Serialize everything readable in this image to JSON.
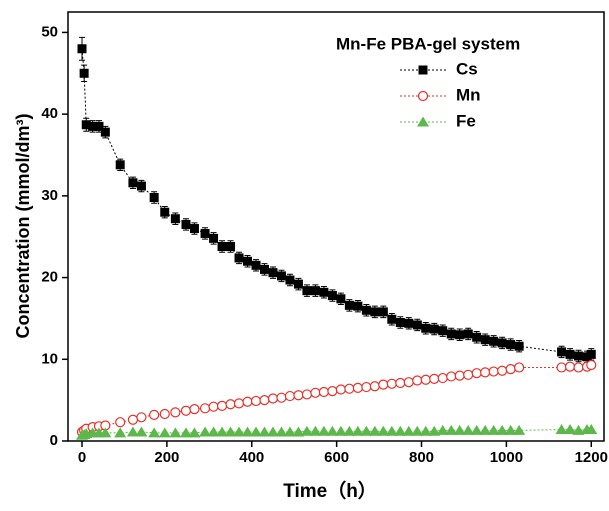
{
  "chart_data": {
    "type": "scatter",
    "xlabel": "Time（h）",
    "ylabel": "Concentration (mmol/dm³)",
    "legend_title": "Mn-Fe PBA-gel system",
    "legend_position": "upper right",
    "xlim": [
      -33,
      1230
    ],
    "xticks": [
      0,
      200,
      400,
      600,
      800,
      1000,
      1200
    ],
    "ylim": [
      0,
      52.5
    ],
    "yticks": [
      0,
      10,
      20,
      30,
      40,
      50
    ],
    "x": [
      0,
      5,
      10,
      25,
      40,
      55,
      90,
      120,
      140,
      170,
      195,
      220,
      245,
      265,
      290,
      310,
      330,
      350,
      370,
      390,
      410,
      430,
      450,
      470,
      490,
      510,
      530,
      550,
      570,
      590,
      610,
      630,
      650,
      670,
      690,
      710,
      730,
      750,
      770,
      790,
      810,
      830,
      850,
      870,
      890,
      910,
      930,
      950,
      970,
      990,
      1010,
      1030,
      1130,
      1150,
      1170,
      1190,
      1200
    ],
    "series": [
      {
        "name": "Cs",
        "color": "#000000",
        "marker": "square",
        "values": [
          48,
          45,
          38.7,
          38.5,
          38.5,
          37.8,
          33.8,
          31.6,
          31.2,
          29.8,
          28,
          27.2,
          26.5,
          26,
          25.4,
          24.8,
          23.8,
          23.8,
          22.4,
          22,
          21.5,
          21,
          20.6,
          20.2,
          19.7,
          19.2,
          18.4,
          18.4,
          18.2,
          17.8,
          17.4,
          16.6,
          16.5,
          16,
          15.8,
          15.8,
          14.9,
          14.5,
          14.4,
          14.2,
          13.8,
          13.7,
          13.5,
          13.1,
          13.0,
          13.1,
          12.7,
          12.4,
          12.2,
          12.0,
          11.8,
          11.6,
          10.9,
          10.6,
          10.4,
          10.3,
          10.6
        ],
        "errors": [
          1.4,
          1.0,
          0.8,
          0.7,
          0.7,
          0.7,
          0.7,
          0.7,
          0.7,
          0.7,
          0.7,
          0.7,
          0.7,
          0.7,
          0.7,
          0.7,
          0.7,
          0.7,
          0.7,
          0.7,
          0.7,
          0.7,
          0.7,
          0.7,
          0.7,
          0.7,
          0.7,
          0.7,
          0.7,
          0.7,
          0.7,
          0.7,
          0.7,
          0.7,
          0.7,
          0.7,
          0.7,
          0.7,
          0.7,
          0.7,
          0.7,
          0.7,
          0.7,
          0.7,
          0.7,
          0.7,
          0.7,
          0.7,
          0.7,
          0.7,
          0.7,
          0.7,
          0.7,
          0.7,
          0.7,
          0.7,
          0.7
        ]
      },
      {
        "name": "Mn",
        "color": "#e8302a",
        "marker": "circle",
        "values": [
          1.1,
          1.3,
          1.5,
          1.7,
          1.8,
          1.9,
          2.3,
          2.6,
          2.9,
          3.2,
          3.3,
          3.5,
          3.7,
          3.9,
          4.0,
          4.2,
          4.3,
          4.5,
          4.6,
          4.8,
          4.9,
          5.0,
          5.2,
          5.3,
          5.5,
          5.6,
          5.7,
          5.9,
          6.0,
          6.1,
          6.3,
          6.4,
          6.5,
          6.6,
          6.7,
          6.9,
          7.0,
          7.1,
          7.2,
          7.4,
          7.5,
          7.6,
          7.7,
          7.9,
          8.0,
          8.1,
          8.3,
          8.4,
          8.5,
          8.6,
          8.8,
          9.0,
          9.0,
          9.1,
          9.0,
          9.1,
          9.3
        ]
      },
      {
        "name": "Fe",
        "color": "#5cb84a",
        "marker": "triangle",
        "values": [
          0.7,
          0.8,
          0.9,
          1.0,
          1.0,
          1.0,
          1.0,
          1.1,
          1.1,
          1.0,
          1.0,
          1.0,
          1.0,
          1.0,
          1.1,
          1.1,
          1.1,
          1.1,
          1.1,
          1.1,
          1.1,
          1.1,
          1.1,
          1.1,
          1.1,
          1.1,
          1.2,
          1.2,
          1.2,
          1.2,
          1.2,
          1.2,
          1.2,
          1.2,
          1.2,
          1.2,
          1.2,
          1.2,
          1.2,
          1.2,
          1.2,
          1.2,
          1.3,
          1.3,
          1.3,
          1.3,
          1.3,
          1.3,
          1.3,
          1.3,
          1.3,
          1.3,
          1.4,
          1.4,
          1.3,
          1.4,
          1.4
        ]
      }
    ]
  }
}
